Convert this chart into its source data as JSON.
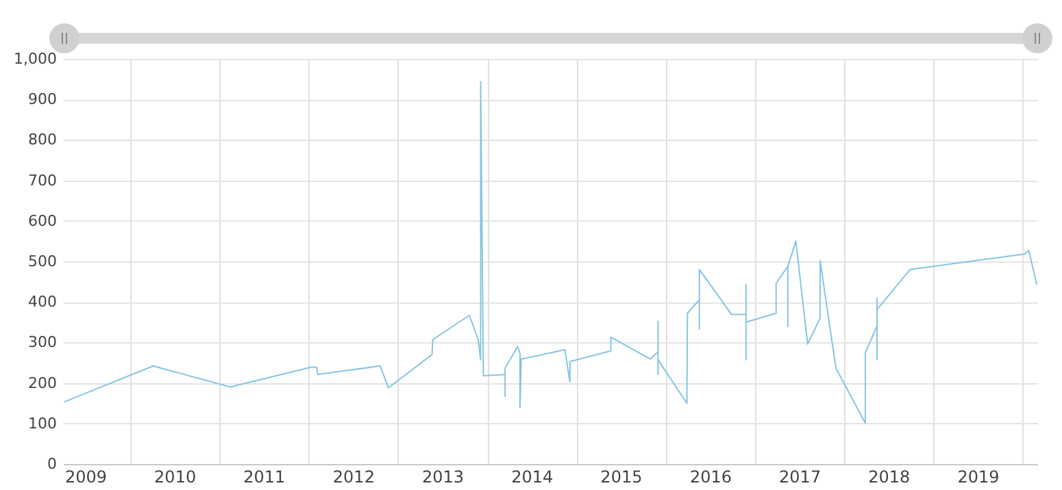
{
  "chart_data": {
    "type": "line",
    "x": [
      "2009-04-05",
      "2010-04-05",
      "2011-02-14",
      "2012-01-12",
      "2012-02-03",
      "2012-02-07",
      "2012-10-20",
      "2012-11-22",
      "2013-05-20",
      "2013-05-23",
      "2013-10-20",
      "2013-11-25",
      "2013-12-05",
      "2013-12-05",
      "2013-12-16",
      "2014-03-15",
      "2014-03-15",
      "2014-03-15",
      "2014-05-05",
      "2014-05-15",
      "2014-05-15",
      "2014-05-20",
      "2014-11-15",
      "2014-12-05",
      "2014-12-06",
      "2015-05-22",
      "2015-05-22",
      "2015-10-30",
      "2015-12-01",
      "2015-12-01",
      "2015-12-01",
      "2015-12-01",
      "2016-03-28",
      "2016-03-30",
      "2016-05-18",
      "2016-05-18",
      "2016-05-18",
      "2016-09-27",
      "2016-11-25",
      "2016-11-25",
      "2016-11-25",
      "2016-11-25",
      "2017-03-28",
      "2017-03-28",
      "2017-05-15",
      "2017-05-15",
      "2017-05-15",
      "2017-06-17",
      "2017-08-04",
      "2017-09-24",
      "2017-09-24",
      "2017-11-28",
      "2018-03-28",
      "2018-03-28",
      "2018-05-15",
      "2018-05-15",
      "2018-05-15",
      "2018-05-15",
      "2018-09-27",
      "2020-01-08",
      "2020-01-26",
      "2020-02-28"
    ],
    "series": [
      {
        "color": "#86c5e3",
        "values": [
          153,
          242,
          190,
          239,
          239,
          221,
          242,
          188,
          270,
          307,
          367,
          307,
          257,
          944,
          218,
          221,
          167,
          236,
          290,
          273,
          139,
          259,
          282,
          203,
          253,
          279,
          313,
          259,
          277,
          352,
          221,
          257,
          150,
          372,
          405,
          333,
          480,
          369,
          369,
          443,
          257,
          350,
          372,
          446,
          488,
          339,
          488,
          550,
          296,
          360,
          502,
          236,
          101,
          274,
          341,
          409,
          257,
          381,
          480,
          518,
          527,
          443
        ]
      }
    ],
    "xlim": [
      "2009-04-01",
      "2020-03-01"
    ],
    "xticks": [
      {
        "value": "2009-07-01",
        "label": "2009"
      },
      {
        "value": "2010-01-01",
        "label": null
      },
      {
        "value": "2010-07-01",
        "label": "2010"
      },
      {
        "value": "2011-01-01",
        "label": null
      },
      {
        "value": "2011-07-01",
        "label": "2011"
      },
      {
        "value": "2012-01-01",
        "label": null
      },
      {
        "value": "2012-07-01",
        "label": "2012"
      },
      {
        "value": "2013-01-01",
        "label": null
      },
      {
        "value": "2013-07-01",
        "label": "2013"
      },
      {
        "value": "2014-01-01",
        "label": null
      },
      {
        "value": "2014-07-01",
        "label": "2014"
      },
      {
        "value": "2015-01-01",
        "label": null
      },
      {
        "value": "2015-07-01",
        "label": "2015"
      },
      {
        "value": "2016-01-01",
        "label": null
      },
      {
        "value": "2016-07-01",
        "label": "2016"
      },
      {
        "value": "2017-01-01",
        "label": null
      },
      {
        "value": "2017-07-01",
        "label": "2017"
      },
      {
        "value": "2018-01-01",
        "label": null
      },
      {
        "value": "2018-07-01",
        "label": "2018"
      },
      {
        "value": "2019-01-01",
        "label": null
      },
      {
        "value": "2019-07-01",
        "label": "2019"
      },
      {
        "value": "2020-01-01",
        "label": null
      }
    ],
    "ylim": [
      0,
      1000
    ],
    "yticks": [
      0,
      100,
      200,
      300,
      400,
      500,
      600,
      700,
      800,
      900,
      {
        "value": 1000,
        "label": "1,000"
      }
    ],
    "grid": true,
    "marker": "none",
    "line_style": "solid"
  }
}
